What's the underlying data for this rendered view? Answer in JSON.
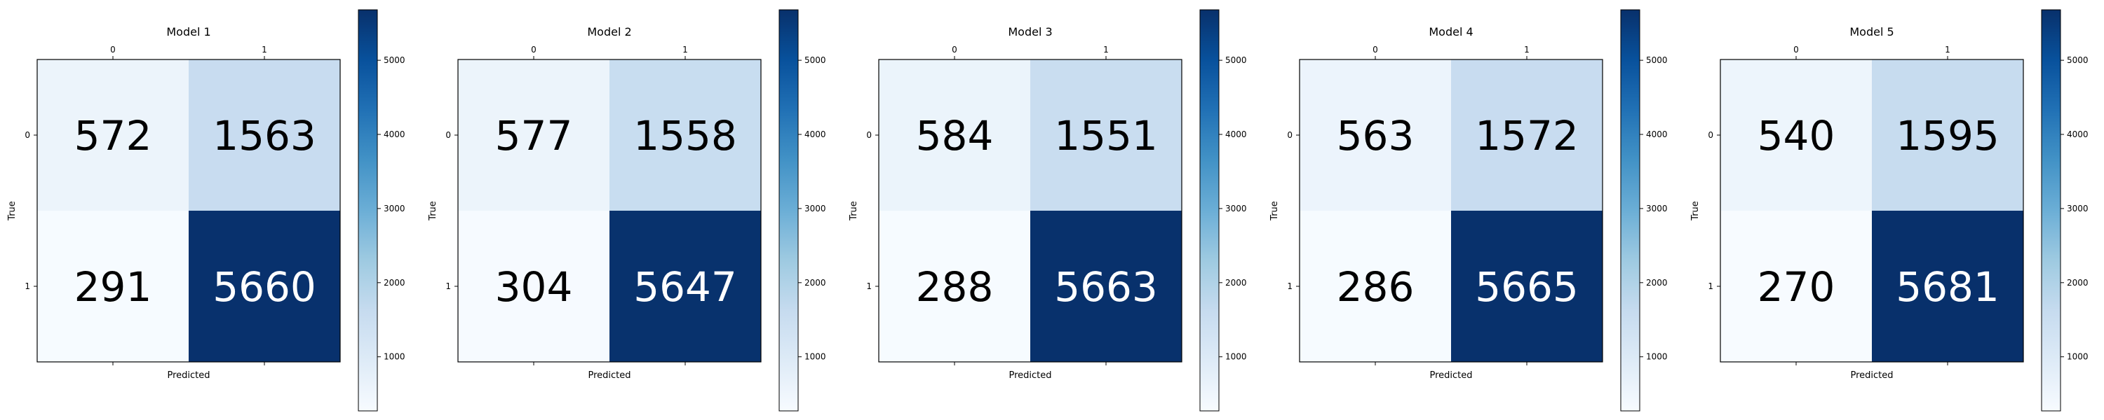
{
  "chart_data": [
    {
      "type": "heatmap",
      "title": "Model 1",
      "xlabel": "Predicted",
      "ylabel": "True",
      "x_ticks": [
        "0",
        "1"
      ],
      "y_ticks": [
        "0",
        "1"
      ],
      "values": [
        [
          572,
          1563
        ],
        [
          291,
          5660
        ]
      ],
      "colormap": "Blues",
      "color_range": [
        270,
        5681
      ],
      "colorbar_ticks": [
        1000,
        2000,
        3000,
        4000,
        5000
      ],
      "grid": false
    },
    {
      "type": "heatmap",
      "title": "Model 2",
      "xlabel": "Predicted",
      "ylabel": "True",
      "x_ticks": [
        "0",
        "1"
      ],
      "y_ticks": [
        "0",
        "1"
      ],
      "values": [
        [
          577,
          1558
        ],
        [
          304,
          5647
        ]
      ],
      "colormap": "Blues",
      "color_range": [
        270,
        5681
      ],
      "colorbar_ticks": [
        1000,
        2000,
        3000,
        4000,
        5000
      ],
      "grid": false
    },
    {
      "type": "heatmap",
      "title": "Model 3",
      "xlabel": "Predicted",
      "ylabel": "True",
      "x_ticks": [
        "0",
        "1"
      ],
      "y_ticks": [
        "0",
        "1"
      ],
      "values": [
        [
          584,
          1551
        ],
        [
          288,
          5663
        ]
      ],
      "colormap": "Blues",
      "color_range": [
        270,
        5681
      ],
      "colorbar_ticks": [
        1000,
        2000,
        3000,
        4000,
        5000
      ],
      "grid": false
    },
    {
      "type": "heatmap",
      "title": "Model 4",
      "xlabel": "Predicted",
      "ylabel": "True",
      "x_ticks": [
        "0",
        "1"
      ],
      "y_ticks": [
        "0",
        "1"
      ],
      "values": [
        [
          563,
          1572
        ],
        [
          286,
          5665
        ]
      ],
      "colormap": "Blues",
      "color_range": [
        270,
        5681
      ],
      "colorbar_ticks": [
        1000,
        2000,
        3000,
        4000,
        5000
      ],
      "grid": false
    },
    {
      "type": "heatmap",
      "title": "Model 5",
      "xlabel": "Predicted",
      "ylabel": "True",
      "x_ticks": [
        "0",
        "1"
      ],
      "y_ticks": [
        "0",
        "1"
      ],
      "values": [
        [
          540,
          1595
        ],
        [
          270,
          5681
        ]
      ],
      "colormap": "Blues",
      "color_range": [
        270,
        5681
      ],
      "colorbar_ticks": [
        1000,
        2000,
        3000,
        4000,
        5000
      ],
      "grid": false
    }
  ]
}
